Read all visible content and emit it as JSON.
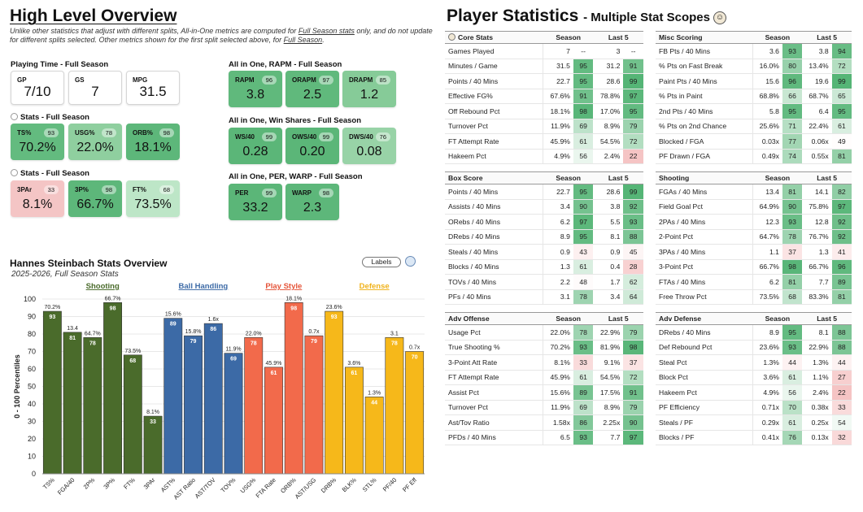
{
  "overview": {
    "title": "High Level Overview",
    "notice_parts": [
      "Unlike other statistics that adjust with different splits, All-in-One metrics are computed for ",
      "Full Season stats",
      " only, and do not update for different splits selected. Other metrics shown for the first split selected above, for ",
      "Full Season",
      "."
    ],
    "playing_time": {
      "label": "Playing Time - Full Season",
      "cards": [
        {
          "label": "GP",
          "value": "7/10"
        },
        {
          "label": "GS",
          "value": "7"
        },
        {
          "label": "MPG",
          "value": "31.5"
        }
      ]
    },
    "stats1": {
      "label": "Stats - Full Season",
      "cards": [
        {
          "label": "TS%",
          "value": "70.2%",
          "pct": "93",
          "color": "#63bb7f"
        },
        {
          "label": "USG%",
          "value": "22.0%",
          "pct": "78",
          "color": "#8fcf9f"
        },
        {
          "label": "ORB%",
          "value": "18.1%",
          "pct": "98",
          "color": "#5db77a"
        }
      ]
    },
    "stats2": {
      "label": "Stats - Full Season",
      "cards": [
        {
          "label": "3PAr",
          "value": "8.1%",
          "pct": "33",
          "color": "#f4c5c5"
        },
        {
          "label": "3P%",
          "value": "66.7%",
          "pct": "98",
          "color": "#5db77a"
        },
        {
          "label": "FT%",
          "value": "73.5%",
          "pct": "68",
          "color": "#bde6c7"
        }
      ]
    },
    "rapm": {
      "label": "All in One, RAPM - Full Season",
      "cards": [
        {
          "label": "RAPM",
          "value": "3.8",
          "pct": "96",
          "color": "#60b97c"
        },
        {
          "label": "ORAPM",
          "value": "2.5",
          "pct": "97",
          "color": "#60b97c"
        },
        {
          "label": "DRAPM",
          "value": "1.2",
          "pct": "85",
          "color": "#86cb98"
        }
      ]
    },
    "winshares": {
      "label": "All in One, Win Shares - Full Season",
      "cards": [
        {
          "label": "WS/40",
          "value": "0.28",
          "pct": "99",
          "color": "#5bb678"
        },
        {
          "label": "OWS/40",
          "value": "0.20",
          "pct": "99",
          "color": "#5bb678"
        },
        {
          "label": "DWS/40",
          "value": "0.08",
          "pct": "76",
          "color": "#98d3a7"
        }
      ]
    },
    "perwarp": {
      "label": "All in One, PER, WARP - Full Season",
      "cards": [
        {
          "label": "PER",
          "value": "33.2",
          "pct": "99",
          "color": "#5bb678"
        },
        {
          "label": "WARP",
          "value": "2.3",
          "pct": "98",
          "color": "#5db77a"
        }
      ]
    }
  },
  "chart": {
    "title": "Hannes Steinbach Stats Overview",
    "subtitle": "2025-2026, Full Season Stats",
    "labels_button": "Labels"
  },
  "chart_data": {
    "type": "bar",
    "ylabel": "0 - 100 Percentiles",
    "ylim": [
      0,
      100
    ],
    "yticks": [
      0,
      10,
      20,
      30,
      40,
      50,
      60,
      70,
      80,
      90,
      100
    ],
    "grid": true,
    "groups": [
      {
        "name": "Shooting",
        "color": "#4a6b2b",
        "labelColor": "#4a6b2b",
        "categories": [
          "TS%",
          "FGA/40",
          "2P%",
          "3P%",
          "FT%",
          "3PAr"
        ],
        "values": [
          93,
          81,
          78,
          98,
          68,
          33
        ],
        "labels": [
          "70.2%",
          "13.4",
          "64.7%",
          "66.7%",
          "73.5%",
          "8.1%"
        ]
      },
      {
        "name": "Ball Handling",
        "color": "#3c6aa6",
        "labelColor": "#3c6aa6",
        "categories": [
          "AST%",
          "AST Ratio",
          "AST/TOV",
          "TOV%"
        ],
        "values": [
          89,
          79,
          86,
          69
        ],
        "labels": [
          "15.6%",
          "15.8%",
          "1.6x",
          "11.9%"
        ]
      },
      {
        "name": "Play Style",
        "color": "#f26a4b",
        "labelColor": "#e5553a",
        "categories": [
          "USG%",
          "FTA Rate",
          "ORB%",
          "AST/USG"
        ],
        "values": [
          78,
          61,
          98,
          79
        ],
        "labels": [
          "22.0%",
          "45.9%",
          "18.1%",
          "0.7x"
        ]
      },
      {
        "name": "Defense",
        "color": "#f6b81a",
        "labelColor": "#f0b21a",
        "categories": [
          "DRB%",
          "BLK%",
          "STL%",
          "PF/40",
          "PF Eff"
        ],
        "values": [
          93,
          61,
          44,
          78,
          70
        ],
        "labels": [
          "23.6%",
          "3.6%",
          "1.3%",
          "3.1",
          "0.7x"
        ]
      }
    ]
  },
  "player_stats": {
    "title": "Player Statistics",
    "subtitle": "- Multiple Stat Scopes",
    "icon": "person-icon",
    "season_label": "Season",
    "last5_label": "Last 5",
    "tables": {
      "core": {
        "title": "Core Stats",
        "rows": [
          {
            "name": "Games Played",
            "s": "7",
            "sp": "--",
            "l": "3",
            "lp": "--"
          },
          {
            "name": "Minutes / Game",
            "s": "31.5",
            "sp": "95",
            "l": "31.2",
            "lp": "91"
          },
          {
            "name": "Points / 40 Mins",
            "s": "22.7",
            "sp": "95",
            "l": "28.6",
            "lp": "99"
          },
          {
            "name": "Effective FG%",
            "s": "67.6%",
            "sp": "91",
            "l": "78.8%",
            "lp": "97"
          },
          {
            "name": "Off Rebound Pct",
            "s": "18.1%",
            "sp": "98",
            "l": "17.0%",
            "lp": "95"
          },
          {
            "name": "Turnover Pct",
            "s": "11.9%",
            "sp": "69",
            "l": "8.9%",
            "lp": "79"
          },
          {
            "name": "FT Attempt Rate",
            "s": "45.9%",
            "sp": "61",
            "l": "54.5%",
            "lp": "72"
          },
          {
            "name": "Hakeem Pct",
            "s": "4.9%",
            "sp": "56",
            "l": "2.4%",
            "lp": "22"
          }
        ]
      },
      "misc": {
        "title": "Misc Scoring",
        "rows": [
          {
            "name": "FB Pts / 40 Mins",
            "s": "3.6",
            "sp": "93",
            "l": "3.8",
            "lp": "94"
          },
          {
            "name": "% Pts on Fast Break",
            "s": "16.0%",
            "sp": "80",
            "l": "13.4%",
            "lp": "72"
          },
          {
            "name": "Paint Pts / 40 Mins",
            "s": "15.6",
            "sp": "96",
            "l": "19.6",
            "lp": "99"
          },
          {
            "name": "% Pts in Paint",
            "s": "68.8%",
            "sp": "66",
            "l": "68.7%",
            "lp": "65"
          },
          {
            "name": "2nd Pts / 40 Mins",
            "s": "5.8",
            "sp": "95",
            "l": "6.4",
            "lp": "95"
          },
          {
            "name": "% Pts on 2nd Chance",
            "s": "25.6%",
            "sp": "71",
            "l": "22.4%",
            "lp": "61"
          },
          {
            "name": "Blocked / FGA",
            "s": "0.03x",
            "sp": "77",
            "l": "0.06x",
            "lp": "49"
          },
          {
            "name": "PF Drawn / FGA",
            "s": "0.49x",
            "sp": "74",
            "l": "0.55x",
            "lp": "81"
          }
        ]
      },
      "box": {
        "title": "Box Score",
        "rows": [
          {
            "name": "Points / 40 Mins",
            "s": "22.7",
            "sp": "95",
            "l": "28.6",
            "lp": "99"
          },
          {
            "name": "Assists / 40 Mins",
            "s": "3.4",
            "sp": "90",
            "l": "3.8",
            "lp": "92"
          },
          {
            "name": "ORebs / 40 Mins",
            "s": "6.2",
            "sp": "97",
            "l": "5.5",
            "lp": "93"
          },
          {
            "name": "DRebs / 40 Mins",
            "s": "8.9",
            "sp": "95",
            "l": "8.1",
            "lp": "88"
          },
          {
            "name": "Steals / 40 Mins",
            "s": "0.9",
            "sp": "43",
            "l": "0.9",
            "lp": "45"
          },
          {
            "name": "Blocks / 40 Mins",
            "s": "1.3",
            "sp": "61",
            "l": "0.4",
            "lp": "28"
          },
          {
            "name": "TOVs / 40 Mins",
            "s": "2.2",
            "sp": "48",
            "l": "1.7",
            "lp": "62"
          },
          {
            "name": "PFs / 40 Mins",
            "s": "3.1",
            "sp": "78",
            "l": "3.4",
            "lp": "64"
          }
        ]
      },
      "shooting": {
        "title": "Shooting",
        "rows": [
          {
            "name": "FGAs / 40 Mins",
            "s": "13.4",
            "sp": "81",
            "l": "14.1",
            "lp": "82"
          },
          {
            "name": "Field Goal Pct",
            "s": "64.9%",
            "sp": "90",
            "l": "75.8%",
            "lp": "97"
          },
          {
            "name": "2PAs / 40 Mins",
            "s": "12.3",
            "sp": "93",
            "l": "12.8",
            "lp": "92"
          },
          {
            "name": "2-Point Pct",
            "s": "64.7%",
            "sp": "78",
            "l": "76.7%",
            "lp": "92"
          },
          {
            "name": "3PAs / 40 Mins",
            "s": "1.1",
            "sp": "37",
            "l": "1.3",
            "lp": "41"
          },
          {
            "name": "3-Point Pct",
            "s": "66.7%",
            "sp": "98",
            "l": "66.7%",
            "lp": "96"
          },
          {
            "name": "FTAs / 40 Mins",
            "s": "6.2",
            "sp": "81",
            "l": "7.7",
            "lp": "89"
          },
          {
            "name": "Free Throw Pct",
            "s": "73.5%",
            "sp": "68",
            "l": "83.3%",
            "lp": "81"
          }
        ]
      },
      "advoff": {
        "title": "Adv Offense",
        "rows": [
          {
            "name": "Usage Pct",
            "s": "22.0%",
            "sp": "78",
            "l": "22.9%",
            "lp": "79"
          },
          {
            "name": "True Shooting %",
            "s": "70.2%",
            "sp": "93",
            "l": "81.9%",
            "lp": "98"
          },
          {
            "name": "3-Point Att Rate",
            "s": "8.1%",
            "sp": "33",
            "l": "9.1%",
            "lp": "37"
          },
          {
            "name": "FT Attempt Rate",
            "s": "45.9%",
            "sp": "61",
            "l": "54.5%",
            "lp": "72"
          },
          {
            "name": "Assist Pct",
            "s": "15.6%",
            "sp": "89",
            "l": "17.5%",
            "lp": "91"
          },
          {
            "name": "Turnover Pct",
            "s": "11.9%",
            "sp": "69",
            "l": "8.9%",
            "lp": "79"
          },
          {
            "name": "Ast/Tov Ratio",
            "s": "1.58x",
            "sp": "86",
            "l": "2.25x",
            "lp": "90"
          },
          {
            "name": "PFDs / 40 Mins",
            "s": "6.5",
            "sp": "93",
            "l": "7.7",
            "lp": "97"
          }
        ]
      },
      "advdef": {
        "title": "Adv Defense",
        "rows": [
          {
            "name": "DRebs / 40 Mins",
            "s": "8.9",
            "sp": "95",
            "l": "8.1",
            "lp": "88"
          },
          {
            "name": "Def Rebound Pct",
            "s": "23.6%",
            "sp": "93",
            "l": "22.9%",
            "lp": "88"
          },
          {
            "name": "Steal Pct",
            "s": "1.3%",
            "sp": "44",
            "l": "1.3%",
            "lp": "44"
          },
          {
            "name": "Block Pct",
            "s": "3.6%",
            "sp": "61",
            "l": "1.1%",
            "lp": "27"
          },
          {
            "name": "Hakeem Pct",
            "s": "4.9%",
            "sp": "56",
            "l": "2.4%",
            "lp": "22"
          },
          {
            "name": "PF Efficiency",
            "s": "0.71x",
            "sp": "70",
            "l": "0.38x",
            "lp": "33"
          },
          {
            "name": "Steals / PF",
            "s": "0.29x",
            "sp": "61",
            "l": "0.25x",
            "lp": "54"
          },
          {
            "name": "Blocks / PF",
            "s": "0.41x",
            "sp": "76",
            "l": "0.13x",
            "lp": "32"
          }
        ]
      }
    }
  }
}
